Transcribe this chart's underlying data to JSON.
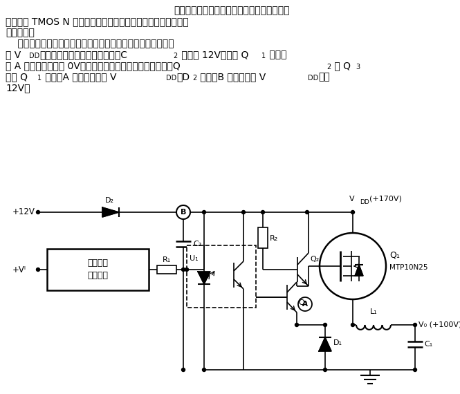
{
  "bg_color": "#ffffff",
  "text_color": "#000000",
  "figsize": [
    6.65,
    5.7
  ],
  "dpi": 100,
  "para1": "该电路基本上是一个经典的降压斩波电路，只",
  "para2": "是使用了 TMOS N 沟道型功率场效应管以及由自己产生门极控制",
  "para3": "电路电源。",
  "para4": "    该电路特点是如何产生一个单独的门极控制电路电源，且需大",
  "para5_a": "于 V",
  "para5_b": "DD",
  "para5_c": "。其工作过程是当电路通电后，C",
  "para5_d": "2",
  "para5_e": " 充电到 12V，这时 Q",
  "para5_f": "1",
  "para5_g": " 关断并",
  "para6_a": "且 A 点的电压略低于 0V。当加上脉宽调制信号后，光电管，Q",
  "para6_b": "2",
  "para6_c": " 和 Q",
  "para6_d": "3",
  "para7_a": "使得 Q",
  "para7_b": "1",
  "para7_c": " 导通，A 点的电压变为 V",
  "para7_d": "DD",
  "para7_e": "，D",
  "para7_f": "2",
  "para7_g": " 反偏，B 点的电压比 V",
  "para7_h": "DD",
  "para7_i": "高出",
  "para8": "12V。"
}
